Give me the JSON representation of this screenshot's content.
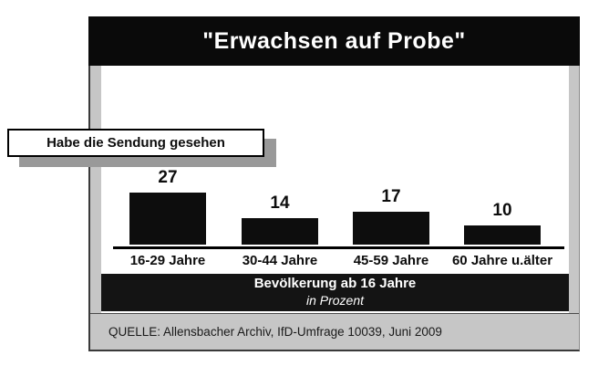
{
  "slide": {
    "title": "\"Erwachsen auf Probe\"",
    "callout_label": "Habe die Sendung gesehen",
    "band": {
      "line1": "Bevölkerung ab 16 Jahre",
      "line2": "in Prozent"
    },
    "source": "QUELLE: Allensbacher Archiv, IfD-Umfrage 10039, Juni 2009"
  },
  "colors": {
    "bar_fill": "#0d0d0d",
    "title_bar_bg": "#0a0a0a",
    "band_bg": "#141414",
    "slide_bg": "#c6c6c6",
    "callout_shadow": "#999999",
    "text_on_dark": "#ffffff"
  },
  "chart_data": {
    "type": "bar",
    "title": "\"Erwachsen auf Probe\"",
    "subtitle": "Habe die Sendung gesehen",
    "categories": [
      "16-29 Jahre",
      "30-44 Jahre",
      "45-59 Jahre",
      "60 Jahre u.älter"
    ],
    "values": [
      27,
      14,
      17,
      10
    ],
    "unit": "Prozent",
    "population_note": "Bevölkerung ab 16 Jahre",
    "ylim": [
      0,
      30
    ],
    "grid": false,
    "legend": false,
    "value_labels": "above bars",
    "source": "QUELLE: Allensbacher Archiv, IfD-Umfrage 10039, Juni 2009"
  }
}
